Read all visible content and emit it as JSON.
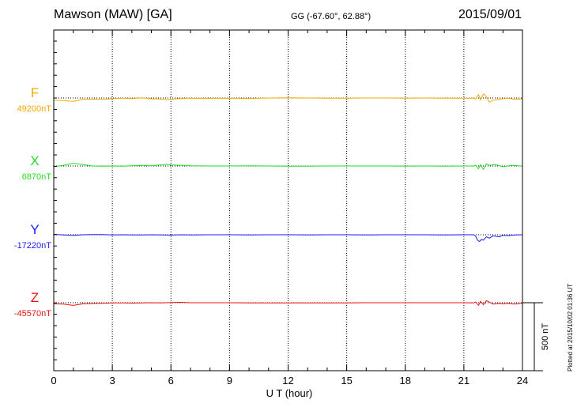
{
  "header": {
    "station": "Mawson (MAW)  [GA]",
    "coords": "GG (-67.60°,  62.88°)",
    "date": "2015/09/01"
  },
  "footer": {
    "plotted": "Plotted at 2015/10/02 01:36 UT"
  },
  "chart_data": {
    "type": "line",
    "title": "Mawson (MAW)  [GA]",
    "xlabel": "U T (hour)",
    "xlim": [
      0,
      24
    ],
    "xticks": [
      0,
      3,
      6,
      9,
      12,
      15,
      18,
      21,
      24
    ],
    "xtick_labels": [
      "0",
      "3",
      "6",
      "9",
      "12",
      "15",
      "18",
      "21",
      "24"
    ],
    "grid": "vertical dotted at 3-hour intervals",
    "scale_bar": {
      "label": "500 nT",
      "value_nT": 500
    },
    "series": [
      {
        "name": "F",
        "baseline_label": "49200nT",
        "baseline_nT": 49200,
        "color": "#f5a800",
        "points": [
          [
            0,
            -15
          ],
          [
            0.5,
            -20
          ],
          [
            1,
            -25
          ],
          [
            1.5,
            -10
          ],
          [
            2,
            -8
          ],
          [
            2.5,
            -10
          ],
          [
            3,
            -5
          ],
          [
            3.5,
            -2
          ],
          [
            4,
            -4
          ],
          [
            4.5,
            2
          ],
          [
            5,
            -6
          ],
          [
            5.5,
            -8
          ],
          [
            5.8,
            -12
          ],
          [
            6,
            -10
          ],
          [
            6.3,
            -6
          ],
          [
            7,
            -2
          ],
          [
            8,
            -3
          ],
          [
            9,
            -2
          ],
          [
            10,
            -4
          ],
          [
            11,
            0
          ],
          [
            12,
            2
          ],
          [
            13,
            0
          ],
          [
            14,
            -2
          ],
          [
            15,
            -1
          ],
          [
            16,
            0
          ],
          [
            17,
            0
          ],
          [
            18,
            -1
          ],
          [
            19,
            0
          ],
          [
            20,
            -1
          ],
          [
            21,
            -2
          ],
          [
            21.5,
            -2
          ],
          [
            21.6,
            -8
          ],
          [
            21.75,
            25
          ],
          [
            21.85,
            -15
          ],
          [
            22,
            30
          ],
          [
            22.15,
            10
          ],
          [
            22.3,
            -30
          ],
          [
            22.5,
            -15
          ],
          [
            22.8,
            -10
          ],
          [
            23,
            -5
          ],
          [
            23.3,
            -2
          ],
          [
            23.6,
            -10
          ],
          [
            24,
            -5
          ]
        ]
      },
      {
        "name": "X",
        "baseline_label": "6870nT",
        "baseline_nT": 6870,
        "color": "#22dd22",
        "points": [
          [
            0,
            -5
          ],
          [
            0.5,
            5
          ],
          [
            1,
            20
          ],
          [
            1.5,
            10
          ],
          [
            2,
            0
          ],
          [
            2.5,
            -2
          ],
          [
            3,
            0
          ],
          [
            3.5,
            -2
          ],
          [
            4,
            2
          ],
          [
            4.5,
            5
          ],
          [
            5,
            2
          ],
          [
            5.5,
            8
          ],
          [
            5.8,
            12
          ],
          [
            6,
            8
          ],
          [
            6.5,
            5
          ],
          [
            7,
            2
          ],
          [
            8,
            0
          ],
          [
            9,
            0
          ],
          [
            10,
            1
          ],
          [
            11,
            0
          ],
          [
            12,
            -2
          ],
          [
            13,
            -1
          ],
          [
            14,
            0
          ],
          [
            15,
            0
          ],
          [
            16,
            0
          ],
          [
            17,
            0
          ],
          [
            18,
            -1
          ],
          [
            19,
            0
          ],
          [
            20,
            -1
          ],
          [
            21,
            0
          ],
          [
            21.5,
            0
          ],
          [
            21.6,
            5
          ],
          [
            21.75,
            -20
          ],
          [
            21.85,
            10
          ],
          [
            22,
            -25
          ],
          [
            22.15,
            15
          ],
          [
            22.3,
            5
          ],
          [
            22.6,
            10
          ],
          [
            23,
            -5
          ],
          [
            23.5,
            5
          ],
          [
            24,
            -2
          ]
        ]
      },
      {
        "name": "Y",
        "baseline_label": "-17220nT",
        "baseline_nT": -17220,
        "color": "#1a1aff",
        "points": [
          [
            0,
            3
          ],
          [
            0.5,
            -1
          ],
          [
            1,
            -4
          ],
          [
            1.5,
            0
          ],
          [
            2,
            2
          ],
          [
            2.5,
            1
          ],
          [
            3,
            -2
          ],
          [
            3.5,
            0
          ],
          [
            4,
            -1
          ],
          [
            4.5,
            -2
          ],
          [
            5,
            0
          ],
          [
            5.5,
            -1
          ],
          [
            6,
            -3
          ],
          [
            6.5,
            0
          ],
          [
            7,
            -1
          ],
          [
            8,
            0
          ],
          [
            9,
            0
          ],
          [
            10,
            -1
          ],
          [
            11,
            0
          ],
          [
            12,
            0
          ],
          [
            13,
            -1
          ],
          [
            14,
            0
          ],
          [
            15,
            0
          ],
          [
            16,
            -1
          ],
          [
            17,
            0
          ],
          [
            18,
            0
          ],
          [
            19,
            0
          ],
          [
            20,
            -1
          ],
          [
            21,
            0
          ],
          [
            21.5,
            0
          ],
          [
            21.6,
            -10
          ],
          [
            21.7,
            -40
          ],
          [
            21.8,
            -50
          ],
          [
            21.9,
            -35
          ],
          [
            22,
            -40
          ],
          [
            22.15,
            -15
          ],
          [
            22.3,
            -25
          ],
          [
            22.5,
            -8
          ],
          [
            22.8,
            -15
          ],
          [
            23,
            -4
          ],
          [
            23.3,
            -6
          ],
          [
            23.6,
            -2
          ],
          [
            24,
            0
          ]
        ]
      },
      {
        "name": "Z",
        "baseline_label": "-45570nT",
        "baseline_nT": -45570,
        "color": "#ee1111",
        "points": [
          [
            0,
            -8
          ],
          [
            0.5,
            -10
          ],
          [
            1,
            -20
          ],
          [
            1.5,
            -8
          ],
          [
            2,
            -6
          ],
          [
            2.5,
            -4
          ],
          [
            3,
            -2
          ],
          [
            3.5,
            -1
          ],
          [
            4,
            -3
          ],
          [
            4.5,
            -1
          ],
          [
            5,
            0
          ],
          [
            5.5,
            -2
          ],
          [
            6,
            2
          ],
          [
            6.5,
            3
          ],
          [
            7,
            0
          ],
          [
            8,
            0
          ],
          [
            9,
            0
          ],
          [
            10,
            -1
          ],
          [
            11,
            -1
          ],
          [
            12,
            -1
          ],
          [
            13,
            -2
          ],
          [
            14,
            -1
          ],
          [
            15,
            -1
          ],
          [
            16,
            0
          ],
          [
            17,
            0
          ],
          [
            18,
            0
          ],
          [
            19,
            0
          ],
          [
            20,
            0
          ],
          [
            21,
            0
          ],
          [
            21.5,
            -1
          ],
          [
            21.6,
            5
          ],
          [
            21.75,
            -20
          ],
          [
            21.85,
            10
          ],
          [
            22,
            -15
          ],
          [
            22.15,
            15
          ],
          [
            22.3,
            5
          ],
          [
            22.5,
            -10
          ],
          [
            22.8,
            -5
          ],
          [
            23,
            -8
          ],
          [
            23.3,
            -5
          ],
          [
            23.6,
            -10
          ],
          [
            24,
            -3
          ]
        ]
      }
    ]
  }
}
